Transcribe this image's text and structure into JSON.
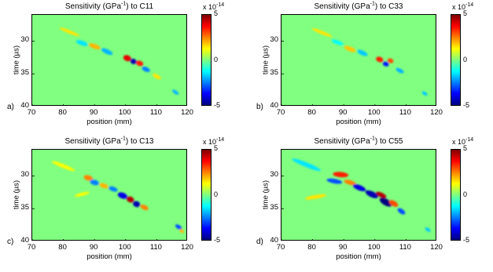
{
  "chart_data": [
    {
      "type": "heatmap",
      "letter": "a)",
      "title_pre": "Sensitivity (GPa",
      "title_sup": "-1",
      "title_post": ") to C11",
      "xlabel": "position (mm)",
      "ylabel": "time (µs)",
      "x_ticks": [
        "70",
        "80",
        "90",
        "100",
        "110",
        "120"
      ],
      "xlim": [
        70,
        120
      ],
      "y_ticks": [
        "30",
        "35",
        "40"
      ],
      "ylim": [
        26,
        40
      ],
      "colorbar_ticks": [
        "5",
        "0",
        "-5"
      ],
      "colorbar_exp_base": "x 10",
      "colorbar_exp": "-14",
      "clim": [
        -5,
        5
      ],
      "features": [
        {
          "x": 82,
          "y": 28.6,
          "rx": 3.5,
          "ry": 0.25,
          "v": 1.5,
          "rot": 22
        },
        {
          "x": 86,
          "y": 30.3,
          "rx": 2.0,
          "ry": 0.35,
          "v": -1.5,
          "rot": 20
        },
        {
          "x": 90,
          "y": 30.8,
          "rx": 2.0,
          "ry": 0.35,
          "v": 2.0,
          "rot": 20
        },
        {
          "x": 94,
          "y": 31.6,
          "rx": 2.0,
          "ry": 0.35,
          "v": -2.0,
          "rot": 25
        },
        {
          "x": 100.5,
          "y": 32.6,
          "rx": 1.3,
          "ry": 0.45,
          "v": 4.0,
          "rot": 20
        },
        {
          "x": 102.5,
          "y": 33.1,
          "rx": 1.0,
          "ry": 0.4,
          "v": -4.5,
          "rot": 20
        },
        {
          "x": 104.5,
          "y": 33.4,
          "rx": 1.2,
          "ry": 0.4,
          "v": 3.5,
          "rot": 20
        },
        {
          "x": 106.5,
          "y": 34.3,
          "rx": 1.4,
          "ry": 0.35,
          "v": -2.5,
          "rot": 25
        },
        {
          "x": 110,
          "y": 35.4,
          "rx": 1.5,
          "ry": 0.3,
          "v": 1.5,
          "rot": 30
        },
        {
          "x": 116,
          "y": 37.8,
          "rx": 1.2,
          "ry": 0.25,
          "v": -2.0,
          "rot": 35
        }
      ]
    },
    {
      "type": "heatmap",
      "letter": "b)",
      "title_pre": "Sensitivity (GPa",
      "title_sup": "-1",
      "title_post": ") to C33",
      "xlabel": "position (mm)",
      "ylabel": "time (µs)",
      "x_ticks": [
        "70",
        "80",
        "90",
        "100",
        "110",
        "120"
      ],
      "xlim": [
        70,
        120
      ],
      "y_ticks": [
        "30",
        "35",
        "40"
      ],
      "ylim": [
        26,
        40
      ],
      "colorbar_ticks": [
        "5",
        "0",
        "-5"
      ],
      "colorbar_exp_base": "x 10",
      "colorbar_exp": "-14",
      "clim": [
        -5,
        5
      ],
      "features": [
        {
          "x": 83,
          "y": 28.7,
          "rx": 3.5,
          "ry": 0.25,
          "v": 1.5,
          "rot": 22
        },
        {
          "x": 88,
          "y": 30.2,
          "rx": 2.0,
          "ry": 0.3,
          "v": -1.2,
          "rot": 20
        },
        {
          "x": 92,
          "y": 31.2,
          "rx": 2.0,
          "ry": 0.35,
          "v": 1.8,
          "rot": 22
        },
        {
          "x": 96,
          "y": 31.8,
          "rx": 1.8,
          "ry": 0.35,
          "v": -1.8,
          "rot": 25
        },
        {
          "x": 101.5,
          "y": 32.8,
          "rx": 1.2,
          "ry": 0.4,
          "v": 3.5,
          "rot": 20
        },
        {
          "x": 103.5,
          "y": 33.5,
          "rx": 1.0,
          "ry": 0.35,
          "v": -3.5,
          "rot": 20
        },
        {
          "x": 105,
          "y": 33.0,
          "rx": 1.0,
          "ry": 0.35,
          "v": 3.0,
          "rot": 20
        },
        {
          "x": 108,
          "y": 34.5,
          "rx": 1.4,
          "ry": 0.3,
          "v": -2.0,
          "rot": 28
        },
        {
          "x": 116,
          "y": 38.0,
          "rx": 1.0,
          "ry": 0.25,
          "v": -1.8,
          "rot": 35
        }
      ]
    },
    {
      "type": "heatmap",
      "letter": "c)",
      "title_pre": "Sensitivity (GPa",
      "title_sup": "-1",
      "title_post": ") to C13",
      "xlabel": "position (mm)",
      "ylabel": "time (µs)",
      "x_ticks": [
        "70",
        "80",
        "90",
        "100",
        "110",
        "120"
      ],
      "xlim": [
        70,
        120
      ],
      "y_ticks": [
        "30",
        "35",
        "40"
      ],
      "ylim": [
        26,
        40
      ],
      "colorbar_ticks": [
        "5",
        "0",
        "-5"
      ],
      "colorbar_exp_base": "x 10",
      "colorbar_exp": "-14",
      "clim": [
        -5,
        5
      ],
      "features": [
        {
          "x": 80,
          "y": 28.5,
          "rx": 4.0,
          "ry": 0.3,
          "v": 1.2,
          "rot": 22
        },
        {
          "x": 88,
          "y": 30.3,
          "rx": 1.5,
          "ry": 0.4,
          "v": 2.5,
          "rot": 15
        },
        {
          "x": 90,
          "y": 31.0,
          "rx": 1.5,
          "ry": 0.4,
          "v": -2.5,
          "rot": 15
        },
        {
          "x": 93,
          "y": 31.5,
          "rx": 1.5,
          "ry": 0.35,
          "v": 2.0,
          "rot": 20
        },
        {
          "x": 96,
          "y": 32.0,
          "rx": 1.5,
          "ry": 0.35,
          "v": -2.5,
          "rot": 20
        },
        {
          "x": 99,
          "y": 33.0,
          "rx": 1.6,
          "ry": 0.45,
          "v": -4.0,
          "rot": 20
        },
        {
          "x": 101.5,
          "y": 33.6,
          "rx": 1.2,
          "ry": 0.45,
          "v": 4.5,
          "rot": 20
        },
        {
          "x": 103.5,
          "y": 34.3,
          "rx": 1.2,
          "ry": 0.45,
          "v": -4.5,
          "rot": 20
        },
        {
          "x": 106,
          "y": 34.8,
          "rx": 1.4,
          "ry": 0.35,
          "v": 2.5,
          "rot": 25
        },
        {
          "x": 86,
          "y": 32.8,
          "rx": 2.5,
          "ry": 0.25,
          "v": 1.2,
          "rot": -15
        },
        {
          "x": 117,
          "y": 37.8,
          "rx": 1.2,
          "ry": 0.3,
          "v": -3.0,
          "rot": 35
        },
        {
          "x": 118,
          "y": 38.4,
          "rx": 0.8,
          "ry": 0.25,
          "v": 2.0,
          "rot": 35
        }
      ]
    },
    {
      "type": "heatmap",
      "letter": "d)",
      "title_pre": "Sensitivity (GPa",
      "title_sup": "-1",
      "title_post": ") to C55",
      "xlabel": "position (mm)",
      "ylabel": "time (µs)",
      "x_ticks": [
        "70",
        "80",
        "90",
        "100",
        "110",
        "120"
      ],
      "xlim": [
        70,
        120
      ],
      "y_ticks": [
        "30",
        "35",
        "40"
      ],
      "ylim": [
        26,
        40
      ],
      "colorbar_ticks": [
        "5",
        "0",
        "-5"
      ],
      "colorbar_exp_base": "x 10",
      "colorbar_exp": "-14",
      "clim": [
        -5,
        5
      ],
      "features": [
        {
          "x": 78,
          "y": 28.3,
          "rx": 5.0,
          "ry": 0.35,
          "v": -1.5,
          "rot": 22
        },
        {
          "x": 89,
          "y": 29.8,
          "rx": 2.5,
          "ry": 0.4,
          "v": 3.5,
          "rot": 5
        },
        {
          "x": 87,
          "y": 30.8,
          "rx": 2.5,
          "ry": 0.35,
          "v": -3.0,
          "rot": 10
        },
        {
          "x": 92,
          "y": 31.0,
          "rx": 2.0,
          "ry": 0.35,
          "v": 2.5,
          "rot": 15
        },
        {
          "x": 95,
          "y": 31.8,
          "rx": 2.2,
          "ry": 0.4,
          "v": -4.0,
          "rot": 22
        },
        {
          "x": 99,
          "y": 32.8,
          "rx": 2.2,
          "ry": 0.45,
          "v": -4.5,
          "rot": 25
        },
        {
          "x": 102,
          "y": 32.9,
          "rx": 1.8,
          "ry": 0.35,
          "v": 4.5,
          "rot": 25
        },
        {
          "x": 103.5,
          "y": 34.0,
          "rx": 2.2,
          "ry": 0.5,
          "v": -5.0,
          "rot": 30
        },
        {
          "x": 106,
          "y": 34.2,
          "rx": 1.6,
          "ry": 0.4,
          "v": 3.0,
          "rot": 30
        },
        {
          "x": 108.5,
          "y": 35.4,
          "rx": 1.4,
          "ry": 0.35,
          "v": -3.0,
          "rot": 35
        },
        {
          "x": 81,
          "y": 33.2,
          "rx": 3.5,
          "ry": 0.3,
          "v": 1.5,
          "rot": -10
        },
        {
          "x": 117,
          "y": 38.2,
          "rx": 1.0,
          "ry": 0.25,
          "v": -1.8,
          "rot": 35
        }
      ]
    }
  ]
}
